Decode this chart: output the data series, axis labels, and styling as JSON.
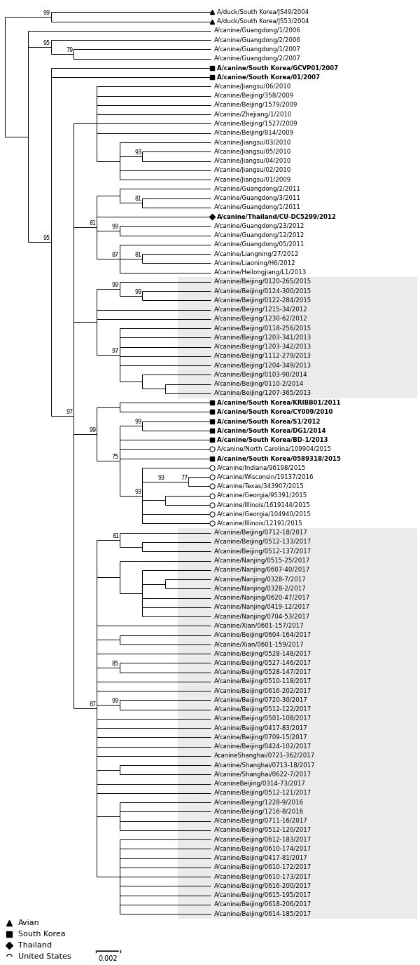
{
  "figsize": [
    6.0,
    13.76
  ],
  "dpi": 100,
  "bg_color": "#ffffff",
  "line_color": "#000000",
  "line_width": 0.7,
  "font_size": 6.2,
  "bootstrap_font_size": 5.8,
  "highlight_color": "#ebebeb",
  "taxa": [
    {
      "name": "A/duck/South Korea/JS49/2004",
      "marker": "triangle",
      "bold": false,
      "row": 0
    },
    {
      "name": "A/duck/South Korea/JS53/2004",
      "marker": "triangle",
      "bold": false,
      "row": 1
    },
    {
      "name": "A/canine/Guangdong/1/2006",
      "marker": null,
      "bold": false,
      "row": 2
    },
    {
      "name": "A/canine/Guangdong/2/2006",
      "marker": null,
      "bold": false,
      "row": 3
    },
    {
      "name": "A/canine/Guangdong/1/2007",
      "marker": null,
      "bold": false,
      "row": 4
    },
    {
      "name": "A/canine/Guangdong/2/2007",
      "marker": null,
      "bold": false,
      "row": 5
    },
    {
      "name": "A/canine/South Korea/GCVP01/2007",
      "marker": "square",
      "bold": true,
      "row": 6
    },
    {
      "name": "A/canine/South Korea/01/2007",
      "marker": "square",
      "bold": true,
      "row": 7
    },
    {
      "name": "A/canine/Jiangsu/06/2010",
      "marker": null,
      "bold": false,
      "row": 8
    },
    {
      "name": "A/canine/Beijing/358/2009",
      "marker": null,
      "bold": false,
      "row": 9
    },
    {
      "name": "A/canine/Beijing/1579/2009",
      "marker": null,
      "bold": false,
      "row": 10
    },
    {
      "name": "A/canine/Zhejiang/1/2010",
      "marker": null,
      "bold": false,
      "row": 11
    },
    {
      "name": "A/canine/Beijing/1527/2009",
      "marker": null,
      "bold": false,
      "row": 12
    },
    {
      "name": "A/canine/Beijing/814/2009",
      "marker": null,
      "bold": false,
      "row": 13
    },
    {
      "name": "A/canine/Jiangsu/03/2010",
      "marker": null,
      "bold": false,
      "row": 14
    },
    {
      "name": "A/canine/Jiangsu/05/2010",
      "marker": null,
      "bold": false,
      "row": 15
    },
    {
      "name": "A/canine/Jiangsu/04/2010",
      "marker": null,
      "bold": false,
      "row": 16
    },
    {
      "name": "A/canine/Jiangsu/02/2010",
      "marker": null,
      "bold": false,
      "row": 17
    },
    {
      "name": "A/canine/Jiangsu/01/2009",
      "marker": null,
      "bold": false,
      "row": 18
    },
    {
      "name": "A/canine/Guangdong/2/2011",
      "marker": null,
      "bold": false,
      "row": 19
    },
    {
      "name": "A/canine/Guangdong/3/2011",
      "marker": null,
      "bold": false,
      "row": 20
    },
    {
      "name": "A/canine/Guangdong/1/2011",
      "marker": null,
      "bold": false,
      "row": 21
    },
    {
      "name": "A/canine/Thailand/CU-DC5299/2012",
      "marker": "diamond",
      "bold": true,
      "row": 22
    },
    {
      "name": "A/canine/Guangdong/23/2012",
      "marker": null,
      "bold": false,
      "row": 23
    },
    {
      "name": "A/canine/Guangdong/12/2012",
      "marker": null,
      "bold": false,
      "row": 24
    },
    {
      "name": "A/canine/Guangdong/05/2011",
      "marker": null,
      "bold": false,
      "row": 25
    },
    {
      "name": "A/canine/Liangning/27/2012",
      "marker": null,
      "bold": false,
      "row": 26
    },
    {
      "name": "A/canine/Liaoning/H6/2012",
      "marker": null,
      "bold": false,
      "row": 27
    },
    {
      "name": "A/canine/Heilongjiang/L1/2013",
      "marker": null,
      "bold": false,
      "row": 28
    },
    {
      "name": "A/canine/Beijing/0120-265/2015",
      "marker": null,
      "bold": false,
      "row": 29,
      "highlight": true
    },
    {
      "name": "A/canine/Beijing/0124-300/2015",
      "marker": null,
      "bold": false,
      "row": 30,
      "highlight": true
    },
    {
      "name": "A/canine/Beijing/0122-284/2015",
      "marker": null,
      "bold": false,
      "row": 31,
      "highlight": true
    },
    {
      "name": "A/canine/Beijing/1215-34/2012",
      "marker": null,
      "bold": false,
      "row": 32,
      "highlight": true
    },
    {
      "name": "A/canine/Beijing/1230-62/2012",
      "marker": null,
      "bold": false,
      "row": 33,
      "highlight": true
    },
    {
      "name": "A/canine/Beijing/0118-256/2015",
      "marker": null,
      "bold": false,
      "row": 34,
      "highlight": true
    },
    {
      "name": "A/canine/Beijing/1203-341/2013",
      "marker": null,
      "bold": false,
      "row": 35,
      "highlight": true
    },
    {
      "name": "A/canine/Beijing/1203-342/2013",
      "marker": null,
      "bold": false,
      "row": 36,
      "highlight": true
    },
    {
      "name": "A/canine/Beijing/1112-279/2013",
      "marker": null,
      "bold": false,
      "row": 37,
      "highlight": true
    },
    {
      "name": "A/canine/Beijing/1204-349/2013",
      "marker": null,
      "bold": false,
      "row": 38,
      "highlight": true
    },
    {
      "name": "A/canine/Beijing/0103-90/2014",
      "marker": null,
      "bold": false,
      "row": 39,
      "highlight": true
    },
    {
      "name": "A/canine/Beijing/0110-2/2014",
      "marker": null,
      "bold": false,
      "row": 40,
      "highlight": true
    },
    {
      "name": "A/canine/Beijing/1207-365/2013",
      "marker": null,
      "bold": false,
      "row": 41,
      "highlight": true
    },
    {
      "name": "A/canine/South Korea/KRIBB01/2011",
      "marker": "square",
      "bold": true,
      "row": 42
    },
    {
      "name": "A/canine/South Korea/CY009/2010",
      "marker": "square",
      "bold": true,
      "row": 43
    },
    {
      "name": "A/canine/South Korea/S1/2012",
      "marker": "square",
      "bold": true,
      "row": 44
    },
    {
      "name": "A/canine/South Korea/DG1/2014",
      "marker": "square",
      "bold": true,
      "row": 45
    },
    {
      "name": "A/canine/South Korea/BD-1/2013",
      "marker": "square",
      "bold": true,
      "row": 46
    },
    {
      "name": "A/canine/North Carolina/109904/2015",
      "marker": "circle",
      "bold": false,
      "row": 47
    },
    {
      "name": "A/canine/South Korea/0589318/2015",
      "marker": "square",
      "bold": true,
      "row": 48
    },
    {
      "name": "A/canine/Indiana/96198/2015",
      "marker": "circle",
      "bold": false,
      "row": 49
    },
    {
      "name": "A/canine/Wisconsin/19137/2016",
      "marker": "circle",
      "bold": false,
      "row": 50
    },
    {
      "name": "A/canine/Texas/343907/2015",
      "marker": "circle",
      "bold": false,
      "row": 51
    },
    {
      "name": "A/canine/Georgia/95391/2015",
      "marker": "circle",
      "bold": false,
      "row": 52
    },
    {
      "name": "A/canine/Illinois/1619144/2015",
      "marker": "circle",
      "bold": false,
      "row": 53
    },
    {
      "name": "A/canine/Georgia/104940/2015",
      "marker": "circle",
      "bold": false,
      "row": 54
    },
    {
      "name": "A/canine/Illinois/12191/2015",
      "marker": "circle",
      "bold": false,
      "row": 55
    },
    {
      "name": "A/canine/Beijing/0712-18/2017",
      "marker": null,
      "bold": false,
      "row": 56,
      "highlight": true
    },
    {
      "name": "A/canine/Beijing/0512-133/2017",
      "marker": null,
      "bold": false,
      "row": 57,
      "highlight": true
    },
    {
      "name": "A/canine/Beijing/0512-137/2017",
      "marker": null,
      "bold": false,
      "row": 58,
      "highlight": true
    },
    {
      "name": "A/canine/Nanjing/0515-25/2017",
      "marker": null,
      "bold": false,
      "row": 59,
      "highlight": true
    },
    {
      "name": "A/canine/Nanjing/0607-40/2017",
      "marker": null,
      "bold": false,
      "row": 60,
      "highlight": true
    },
    {
      "name": "A/canine/Nanjing/0328-7/2017",
      "marker": null,
      "bold": false,
      "row": 61,
      "highlight": true
    },
    {
      "name": "A/canine/Nanjing/0328-2/2017",
      "marker": null,
      "bold": false,
      "row": 62,
      "highlight": true
    },
    {
      "name": "A/canine/Nanjing/0620-47/2017",
      "marker": null,
      "bold": false,
      "row": 63,
      "highlight": true
    },
    {
      "name": "A/canine/Nanjing/0419-12/2017",
      "marker": null,
      "bold": false,
      "row": 64,
      "highlight": true
    },
    {
      "name": "A/canine/Nanjing/0704-53/2017",
      "marker": null,
      "bold": false,
      "row": 65,
      "highlight": true
    },
    {
      "name": "A/canine/Xian/0601-157/2017",
      "marker": null,
      "bold": false,
      "row": 66,
      "highlight": true
    },
    {
      "name": "A/canine/Beijing/0604-164/2017",
      "marker": null,
      "bold": false,
      "row": 67,
      "highlight": true
    },
    {
      "name": "A/canine/Xian/0601-159/2017",
      "marker": null,
      "bold": false,
      "row": 68,
      "highlight": true
    },
    {
      "name": "A/canine/Beijing/0528-148/2017",
      "marker": null,
      "bold": false,
      "row": 69,
      "highlight": true
    },
    {
      "name": "A/canine/Beijing/0527-146/2017",
      "marker": null,
      "bold": false,
      "row": 70,
      "highlight": true
    },
    {
      "name": "A/canine/Beijing/0528-147/2017",
      "marker": null,
      "bold": false,
      "row": 71,
      "highlight": true
    },
    {
      "name": "A/canine/Beijing/0510-118/2017",
      "marker": null,
      "bold": false,
      "row": 72,
      "highlight": true
    },
    {
      "name": "A/canine/Beijing/0616-202/2017",
      "marker": null,
      "bold": false,
      "row": 73,
      "highlight": true
    },
    {
      "name": "A/canine/Beijing/0720-30/2017",
      "marker": null,
      "bold": false,
      "row": 74,
      "highlight": true
    },
    {
      "name": "A/canine/Beijing/0512-122/2017",
      "marker": null,
      "bold": false,
      "row": 75,
      "highlight": true
    },
    {
      "name": "A/canine/Beijing/0501-108/2017",
      "marker": null,
      "bold": false,
      "row": 76,
      "highlight": true
    },
    {
      "name": "A/canine/Beijing/0417-83/2017",
      "marker": null,
      "bold": false,
      "row": 77,
      "highlight": true
    },
    {
      "name": "A/canine/Beijing/0709-15/2017",
      "marker": null,
      "bold": false,
      "row": 78,
      "highlight": true
    },
    {
      "name": "A/canine/Beijing/0424-102/2017",
      "marker": null,
      "bold": false,
      "row": 79,
      "highlight": true
    },
    {
      "name": "AcanineShanghai/0721-362/2017",
      "marker": null,
      "bold": false,
      "row": 80,
      "highlight": true
    },
    {
      "name": "A/canine/Shanghai/0713-18/2017",
      "marker": null,
      "bold": false,
      "row": 81,
      "highlight": true
    },
    {
      "name": "A/canine/Shanghai/0622-7/2017",
      "marker": null,
      "bold": false,
      "row": 82,
      "highlight": true
    },
    {
      "name": "A/canineBeijing/0314-73/2017",
      "marker": null,
      "bold": false,
      "row": 83,
      "highlight": true
    },
    {
      "name": "A/canine/Beijing/0512-121/2017",
      "marker": null,
      "bold": false,
      "row": 84,
      "highlight": true
    },
    {
      "name": "A/canine/Beijing/1228-9/2016",
      "marker": null,
      "bold": false,
      "row": 85,
      "highlight": true
    },
    {
      "name": "A/canine/Beijing/1216-8/2016",
      "marker": null,
      "bold": false,
      "row": 86,
      "highlight": true
    },
    {
      "name": "A/canine/Beijing/0711-16/2017",
      "marker": null,
      "bold": false,
      "row": 87,
      "highlight": true
    },
    {
      "name": "A/canine/Beijing/0512-120/2017",
      "marker": null,
      "bold": false,
      "row": 88,
      "highlight": true
    },
    {
      "name": "A/canine/Beijing/0612-183/2017",
      "marker": null,
      "bold": false,
      "row": 89,
      "highlight": true
    },
    {
      "name": "A/canine/Beijing/0610-174/2017",
      "marker": null,
      "bold": false,
      "row": 90,
      "highlight": true
    },
    {
      "name": "A/canine/Beijing/0417-81/2017",
      "marker": null,
      "bold": false,
      "row": 91,
      "highlight": true
    },
    {
      "name": "A/canine/Beijing/0610-172/2017",
      "marker": null,
      "bold": false,
      "row": 92,
      "highlight": true
    },
    {
      "name": "A/canine/Beijing/0610-173/2017",
      "marker": null,
      "bold": false,
      "row": 93,
      "highlight": true
    },
    {
      "name": "A/canine/Beijing/0616-200/2017",
      "marker": null,
      "bold": false,
      "row": 94,
      "highlight": true
    },
    {
      "name": "A/canine/Beijing/0615-195/2017",
      "marker": null,
      "bold": false,
      "row": 95,
      "highlight": true
    },
    {
      "name": "A/canine/Beijing/0618-206/2017",
      "marker": null,
      "bold": false,
      "row": 96,
      "highlight": true
    },
    {
      "name": "A/canine/Beijing/0614-185/2017",
      "marker": null,
      "bold": false,
      "row": 97,
      "highlight": true
    }
  ],
  "legend": [
    {
      "marker": "triangle",
      "label": "Avian"
    },
    {
      "marker": "square",
      "label": "South Korea"
    },
    {
      "marker": "diamond",
      "label": "Thailand"
    },
    {
      "marker": "circle",
      "label": "United States"
    }
  ],
  "scale_bar_label": "0.002"
}
